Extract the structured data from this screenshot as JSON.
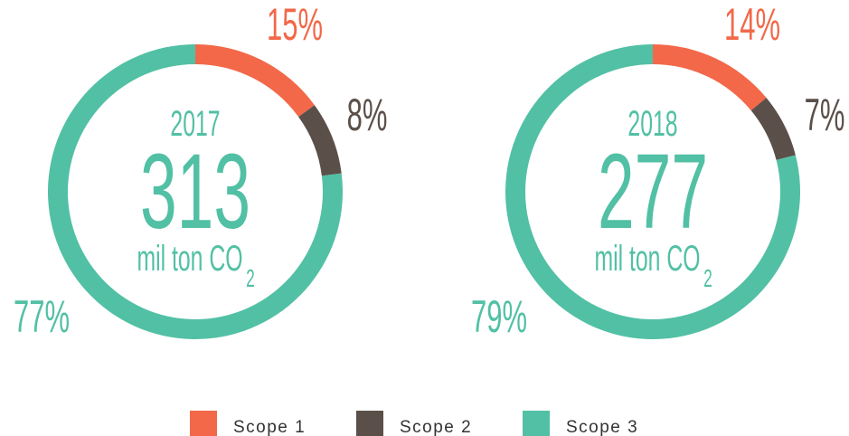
{
  "chart_data": [
    {
      "type": "donut",
      "year": "2017",
      "total": 313,
      "unit": "mil ton CO",
      "unit_subscript": "2",
      "categories": [
        "Scope 1",
        "Scope 2",
        "Scope 3"
      ],
      "values": [
        15,
        8,
        77
      ],
      "value_labels": [
        "15%",
        "8%",
        "77%"
      ],
      "colors": [
        "#f26849",
        "#5b4f4a",
        "#52c0a4"
      ]
    },
    {
      "type": "donut",
      "year": "2018",
      "total": 277,
      "unit": "mil ton CO",
      "unit_subscript": "2",
      "categories": [
        "Scope 1",
        "Scope 2",
        "Scope 3"
      ],
      "values": [
        14,
        7,
        79
      ],
      "value_labels": [
        "14%",
        "7%",
        "79%"
      ],
      "colors": [
        "#f26849",
        "#5b4f4a",
        "#52c0a4"
      ]
    }
  ]
}
